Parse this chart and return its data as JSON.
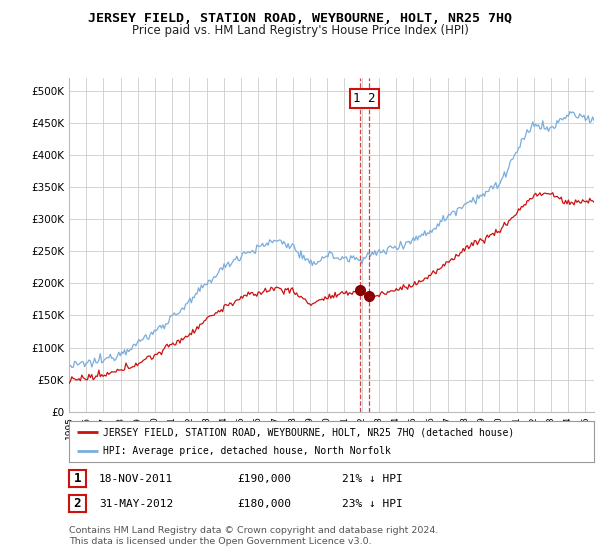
{
  "title": "JERSEY FIELD, STATION ROAD, WEYBOURNE, HOLT, NR25 7HQ",
  "subtitle": "Price paid vs. HM Land Registry's House Price Index (HPI)",
  "ylim": [
    0,
    520000
  ],
  "yticks": [
    0,
    50000,
    100000,
    150000,
    200000,
    250000,
    300000,
    350000,
    400000,
    450000,
    500000
  ],
  "ytick_labels": [
    "£0",
    "£50K",
    "£100K",
    "£150K",
    "£200K",
    "£250K",
    "£300K",
    "£350K",
    "£400K",
    "£450K",
    "£500K"
  ],
  "xlim_start": 1995.0,
  "xlim_end": 2025.5,
  "hpi_color": "#7aaddc",
  "price_color": "#cc1111",
  "sale1_date": 2011.88,
  "sale1_price": 190000,
  "sale2_date": 2012.42,
  "sale2_price": 180000,
  "legend_red_label": "JERSEY FIELD, STATION ROAD, WEYBOURNE, HOLT, NR25 7HQ (detached house)",
  "legend_blue_label": "HPI: Average price, detached house, North Norfolk",
  "table_rows": [
    [
      "1",
      "18-NOV-2011",
      "£190,000",
      "21% ↓ HPI"
    ],
    [
      "2",
      "31-MAY-2012",
      "£180,000",
      "23% ↓ HPI"
    ]
  ],
  "footnote": "Contains HM Land Registry data © Crown copyright and database right 2024.\nThis data is licensed under the Open Government Licence v3.0.",
  "bg_color": "#ffffff",
  "grid_color": "#cccccc"
}
